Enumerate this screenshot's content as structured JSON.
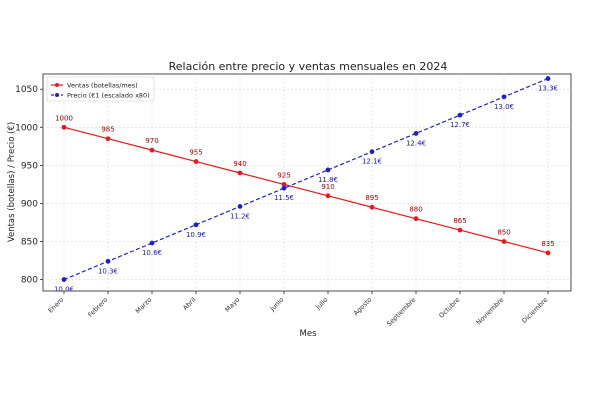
{
  "chart_data": {
    "type": "line",
    "title": "Relación entre precio y ventas mensuales en 2024",
    "xlabel": "Mes",
    "ylabel": "Ventas (botellas) / Precio (€)",
    "categories": [
      "Enero",
      "Febrero",
      "Marzo",
      "Abril",
      "Mayo",
      "Junio",
      "Julio",
      "Agosto",
      "Septiembre",
      "Octubre",
      "Noviembre",
      "Diciembre"
    ],
    "ylim": [
      785,
      1070
    ],
    "yticks": [
      800,
      850,
      900,
      950,
      1000,
      1050
    ],
    "grid": true,
    "legend": "top-left",
    "series": [
      {
        "name": "Ventas (botellas/mes)",
        "color": "#e41a1c",
        "style": "solid",
        "values": [
          1000,
          985,
          970,
          955,
          940,
          925,
          910,
          895,
          880,
          865,
          850,
          835
        ],
        "labels": [
          "1000",
          "985",
          "970",
          "955",
          "940",
          "925",
          "910",
          "895",
          "880",
          "865",
          "850",
          "835"
        ]
      },
      {
        "name": "Precio (€1 (escalado x80)",
        "color": "#1f1fd0",
        "style": "dashed",
        "values": [
          800,
          824,
          848,
          872,
          896,
          920,
          944,
          968,
          992,
          1016,
          1040,
          1064
        ],
        "labels": [
          "10.0€",
          "10.3€",
          "10.6€",
          "10.9€",
          "11.2€",
          "11.5€",
          "11.8€",
          "12.1€",
          "12.4€",
          "12.7€",
          "13.0€",
          "13.3€"
        ]
      }
    ]
  }
}
